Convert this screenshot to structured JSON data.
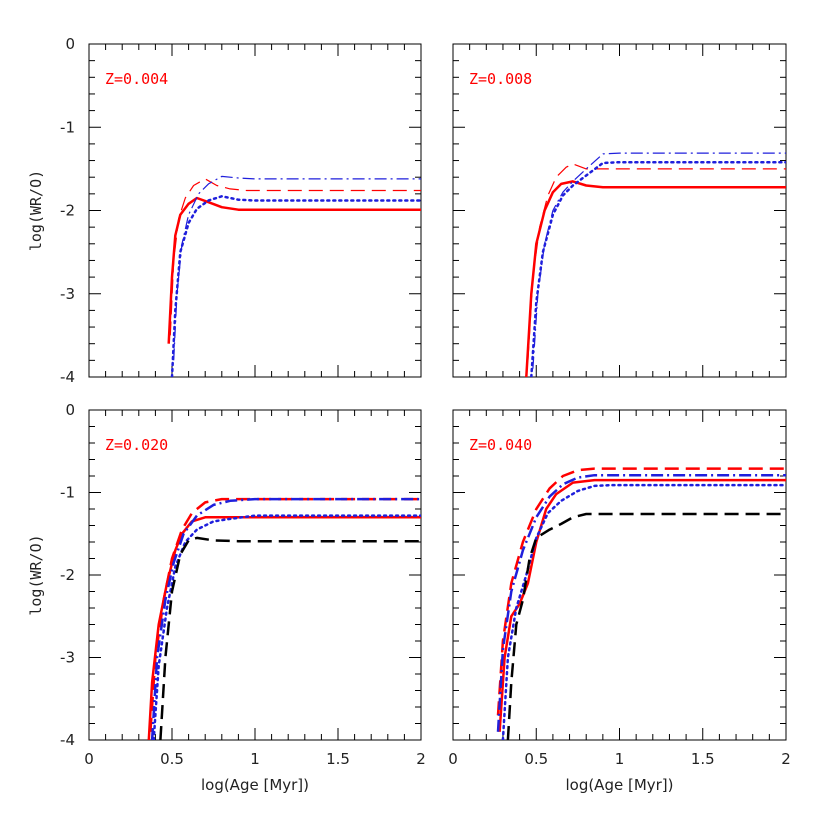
{
  "chart_data": {
    "type": "line",
    "xlabel": "log(Age [Myr])",
    "ylabel": "log(WR/O)",
    "xlim": [
      0,
      2
    ],
    "ylim": [
      -4,
      0
    ],
    "xticks": [
      0,
      0.5,
      1,
      1.5,
      2
    ],
    "xtick_labels": [
      "0",
      "0.5",
      "1",
      "1.5",
      "2"
    ],
    "yticks": [
      0,
      -1,
      -2,
      -3,
      -4
    ],
    "ytick_labels": [
      "0",
      "-1",
      "-2",
      "-3",
      "-4"
    ],
    "colors": {
      "red": "#ff0000",
      "blue": "#1f1fdc",
      "black": "#000000",
      "label": "#ff0000"
    },
    "panels": [
      {
        "id": "z004",
        "label": "Z=0.004",
        "show_xticklabels": false,
        "show_yticklabels": true,
        "show_xlabel": false,
        "show_ylabel": true,
        "series": [
          {
            "name": "red-solid-thick",
            "color": "red",
            "style": "solid",
            "width": 2.5,
            "points": [
              [
                0.48,
                -3.6
              ],
              [
                0.5,
                -2.8
              ],
              [
                0.52,
                -2.3
              ],
              [
                0.55,
                -2.05
              ],
              [
                0.6,
                -1.92
              ],
              [
                0.65,
                -1.85
              ],
              [
                0.72,
                -1.9
              ],
              [
                0.8,
                -1.96
              ],
              [
                0.9,
                -1.99
              ],
              [
                2,
                -1.99
              ]
            ]
          },
          {
            "name": "red-dashed-thin",
            "color": "red",
            "style": "dashed",
            "width": 1.2,
            "points": [
              [
                0.49,
                -3.5
              ],
              [
                0.51,
                -2.6
              ],
              [
                0.54,
                -2.1
              ],
              [
                0.58,
                -1.85
              ],
              [
                0.63,
                -1.7
              ],
              [
                0.7,
                -1.62
              ],
              [
                0.77,
                -1.7
              ],
              [
                0.85,
                -1.74
              ],
              [
                0.95,
                -1.76
              ],
              [
                2,
                -1.76
              ]
            ]
          },
          {
            "name": "blue-dotted-thick",
            "color": "blue",
            "style": "dotted",
            "width": 2.5,
            "points": [
              [
                0.5,
                -4
              ],
              [
                0.52,
                -3.2
              ],
              [
                0.55,
                -2.5
              ],
              [
                0.6,
                -2.15
              ],
              [
                0.65,
                -1.98
              ],
              [
                0.72,
                -1.88
              ],
              [
                0.8,
                -1.83
              ],
              [
                0.9,
                -1.87
              ],
              [
                1,
                -1.88
              ],
              [
                2,
                -1.88
              ]
            ]
          },
          {
            "name": "blue-dashdot-thin",
            "color": "blue",
            "style": "dashdot",
            "width": 1.2,
            "points": [
              [
                0.51,
                -3.8
              ],
              [
                0.53,
                -3.0
              ],
              [
                0.56,
                -2.4
              ],
              [
                0.6,
                -2.05
              ],
              [
                0.66,
                -1.8
              ],
              [
                0.72,
                -1.68
              ],
              [
                0.8,
                -1.59
              ],
              [
                0.9,
                -1.61
              ],
              [
                1,
                -1.62
              ],
              [
                2,
                -1.62
              ]
            ]
          }
        ]
      },
      {
        "id": "z008",
        "label": "Z=0.008",
        "show_xticklabels": false,
        "show_yticklabels": false,
        "show_xlabel": false,
        "show_ylabel": false,
        "series": [
          {
            "name": "red-solid-thick",
            "color": "red",
            "style": "solid",
            "width": 2.5,
            "points": [
              [
                0.44,
                -4
              ],
              [
                0.47,
                -3.0
              ],
              [
                0.5,
                -2.4
              ],
              [
                0.55,
                -2.0
              ],
              [
                0.6,
                -1.78
              ],
              [
                0.65,
                -1.68
              ],
              [
                0.72,
                -1.65
              ],
              [
                0.8,
                -1.7
              ],
              [
                0.9,
                -1.72
              ],
              [
                2,
                -1.72
              ]
            ]
          },
          {
            "name": "red-dashed-thin",
            "color": "red",
            "style": "dashed",
            "width": 1.2,
            "points": [
              [
                0.45,
                -3.8
              ],
              [
                0.48,
                -2.8
              ],
              [
                0.52,
                -2.2
              ],
              [
                0.57,
                -1.82
              ],
              [
                0.62,
                -1.6
              ],
              [
                0.68,
                -1.48
              ],
              [
                0.72,
                -1.44
              ],
              [
                0.8,
                -1.5
              ],
              [
                0.9,
                -1.5
              ],
              [
                2,
                -1.5
              ]
            ]
          },
          {
            "name": "blue-dotted-thick",
            "color": "blue",
            "style": "dotted",
            "width": 2.5,
            "points": [
              [
                0.47,
                -4
              ],
              [
                0.5,
                -3.1
              ],
              [
                0.54,
                -2.5
              ],
              [
                0.6,
                -2.05
              ],
              [
                0.66,
                -1.82
              ],
              [
                0.72,
                -1.7
              ],
              [
                0.8,
                -1.58
              ],
              [
                0.9,
                -1.43
              ],
              [
                1,
                -1.42
              ],
              [
                2,
                -1.42
              ]
            ]
          },
          {
            "name": "blue-dashdot-thin",
            "color": "blue",
            "style": "dashdot",
            "width": 1.2,
            "points": [
              [
                0.48,
                -3.9
              ],
              [
                0.51,
                -3.0
              ],
              [
                0.55,
                -2.4
              ],
              [
                0.6,
                -2.0
              ],
              [
                0.66,
                -1.78
              ],
              [
                0.72,
                -1.65
              ],
              [
                0.8,
                -1.5
              ],
              [
                0.9,
                -1.32
              ],
              [
                1,
                -1.31
              ],
              [
                2,
                -1.31
              ]
            ]
          }
        ]
      },
      {
        "id": "z020",
        "label": "Z=0.020",
        "show_xticklabels": true,
        "show_yticklabels": true,
        "show_xlabel": true,
        "show_ylabel": true,
        "series": [
          {
            "name": "red-solid-thick",
            "color": "red",
            "style": "solid",
            "width": 2.5,
            "points": [
              [
                0.36,
                -4
              ],
              [
                0.38,
                -3.3
              ],
              [
                0.42,
                -2.6
              ],
              [
                0.47,
                -2.1
              ],
              [
                0.52,
                -1.7
              ],
              [
                0.56,
                -1.5
              ],
              [
                0.62,
                -1.35
              ],
              [
                0.7,
                -1.3
              ],
              [
                0.8,
                -1.3
              ],
              [
                2,
                -1.3
              ]
            ]
          },
          {
            "name": "red-dashed-thick",
            "color": "red",
            "style": "dashed",
            "width": 2.5,
            "points": [
              [
                0.37,
                -3.9
              ],
              [
                0.4,
                -3.0
              ],
              [
                0.45,
                -2.3
              ],
              [
                0.5,
                -1.8
              ],
              [
                0.56,
                -1.45
              ],
              [
                0.62,
                -1.25
              ],
              [
                0.7,
                -1.12
              ],
              [
                0.8,
                -1.08
              ],
              [
                2,
                -1.08
              ]
            ]
          },
          {
            "name": "blue-dotted-thick",
            "color": "blue",
            "style": "dotted",
            "width": 2.5,
            "points": [
              [
                0.39,
                -4
              ],
              [
                0.42,
                -3.1
              ],
              [
                0.47,
                -2.4
              ],
              [
                0.52,
                -1.9
              ],
              [
                0.58,
                -1.6
              ],
              [
                0.65,
                -1.45
              ],
              [
                0.75,
                -1.35
              ],
              [
                0.85,
                -1.32
              ],
              [
                1,
                -1.28
              ],
              [
                2,
                -1.28
              ]
            ]
          },
          {
            "name": "blue-dashdot-thick",
            "color": "blue",
            "style": "dashdot",
            "width": 2.5,
            "points": [
              [
                0.38,
                -4
              ],
              [
                0.41,
                -3.0
              ],
              [
                0.46,
                -2.3
              ],
              [
                0.51,
                -1.85
              ],
              [
                0.57,
                -1.5
              ],
              [
                0.65,
                -1.28
              ],
              [
                0.75,
                -1.15
              ],
              [
                0.85,
                -1.1
              ],
              [
                1,
                -1.08
              ],
              [
                2,
                -1.08
              ]
            ]
          },
          {
            "name": "black-dashed-thick",
            "color": "black",
            "style": "dashed",
            "width": 2.5,
            "points": [
              [
                0.43,
                -4
              ],
              [
                0.46,
                -3.0
              ],
              [
                0.5,
                -2.2
              ],
              [
                0.55,
                -1.75
              ],
              [
                0.6,
                -1.58
              ],
              [
                0.65,
                -1.55
              ],
              [
                0.75,
                -1.58
              ],
              [
                0.9,
                -1.59
              ],
              [
                2,
                -1.59
              ]
            ]
          }
        ]
      },
      {
        "id": "z040",
        "label": "Z=0.040",
        "show_xticklabels": true,
        "show_yticklabels": false,
        "show_xlabel": true,
        "show_ylabel": false,
        "series": [
          {
            "name": "red-solid-thick",
            "color": "red",
            "style": "solid",
            "width": 2.5,
            "points": [
              [
                0.28,
                -3.9
              ],
              [
                0.31,
                -3.0
              ],
              [
                0.35,
                -2.5
              ],
              [
                0.4,
                -2.35
              ],
              [
                0.45,
                -2.1
              ],
              [
                0.5,
                -1.6
              ],
              [
                0.56,
                -1.2
              ],
              [
                0.62,
                -1.02
              ],
              [
                0.72,
                -0.88
              ],
              [
                0.85,
                -0.85
              ],
              [
                2,
                -0.85
              ]
            ]
          },
          {
            "name": "red-dashed-thick",
            "color": "red",
            "style": "dashed",
            "width": 2.5,
            "points": [
              [
                0.27,
                -3.7
              ],
              [
                0.3,
                -2.8
              ],
              [
                0.35,
                -2.1
              ],
              [
                0.42,
                -1.6
              ],
              [
                0.5,
                -1.2
              ],
              [
                0.58,
                -0.95
              ],
              [
                0.66,
                -0.8
              ],
              [
                0.75,
                -0.73
              ],
              [
                0.85,
                -0.71
              ],
              [
                2,
                -0.71
              ]
            ]
          },
          {
            "name": "blue-dotted-thick",
            "color": "blue",
            "style": "dotted",
            "width": 2.5,
            "points": [
              [
                0.3,
                -4
              ],
              [
                0.33,
                -3.0
              ],
              [
                0.38,
                -2.4
              ],
              [
                0.44,
                -2.0
              ],
              [
                0.5,
                -1.55
              ],
              [
                0.57,
                -1.25
              ],
              [
                0.65,
                -1.1
              ],
              [
                0.75,
                -0.98
              ],
              [
                0.85,
                -0.92
              ],
              [
                0.95,
                -0.91
              ],
              [
                2,
                -0.91
              ]
            ]
          },
          {
            "name": "blue-dashdot-thick",
            "color": "blue",
            "style": "dashdot",
            "width": 2.5,
            "points": [
              [
                0.27,
                -3.9
              ],
              [
                0.3,
                -2.9
              ],
              [
                0.35,
                -2.2
              ],
              [
                0.42,
                -1.7
              ],
              [
                0.5,
                -1.3
              ],
              [
                0.58,
                -1.05
              ],
              [
                0.66,
                -0.9
              ],
              [
                0.75,
                -0.82
              ],
              [
                0.85,
                -0.79
              ],
              [
                2,
                -0.79
              ]
            ]
          },
          {
            "name": "black-dashed-thick",
            "color": "black",
            "style": "dashed",
            "width": 2.5,
            "points": [
              [
                0.33,
                -4
              ],
              [
                0.35,
                -3.3
              ],
              [
                0.38,
                -2.6
              ],
              [
                0.42,
                -2.3
              ],
              [
                0.46,
                -1.8
              ],
              [
                0.5,
                -1.55
              ],
              [
                0.58,
                -1.45
              ],
              [
                0.65,
                -1.38
              ],
              [
                0.72,
                -1.3
              ],
              [
                0.8,
                -1.26
              ],
              [
                2,
                -1.26
              ]
            ]
          }
        ]
      }
    ]
  }
}
